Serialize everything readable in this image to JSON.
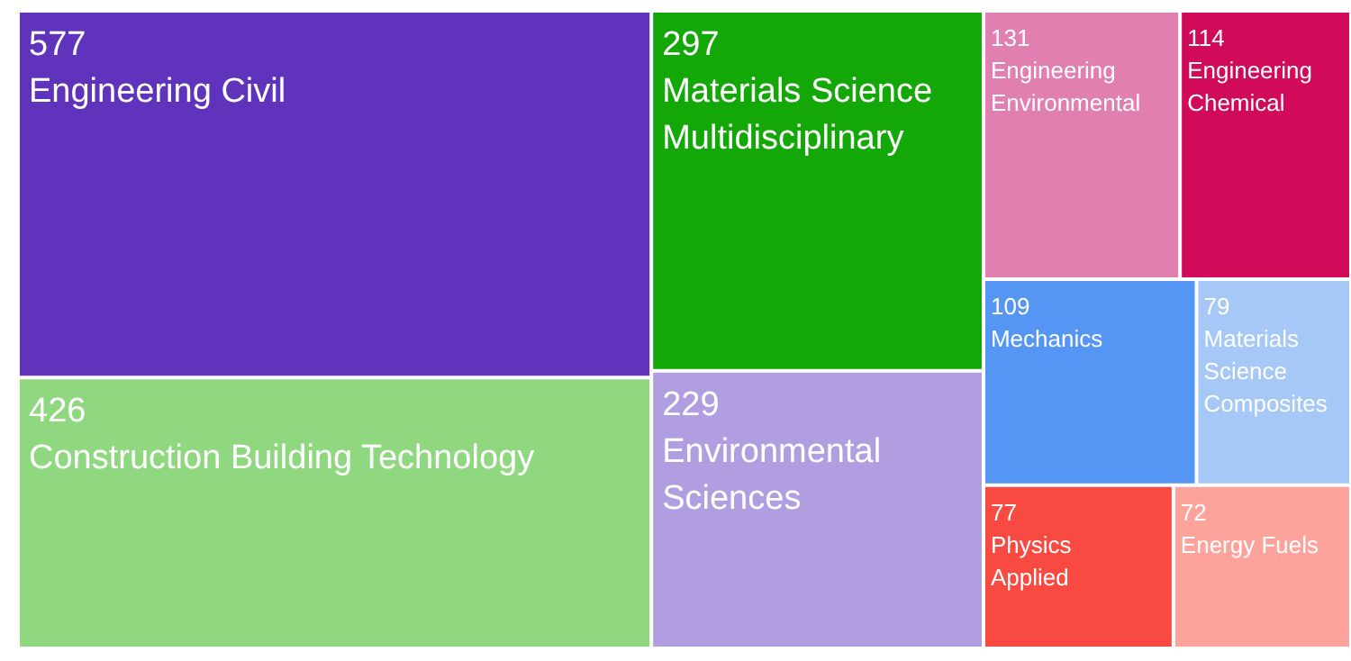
{
  "chart_data": {
    "type": "other",
    "categories": [
      "Engineering Civil",
      "Construction Building Technology",
      "Materials Science Multidisciplinary",
      "Environmental Sciences",
      "Engineering Environmental",
      "Engineering Chemical",
      "Mechanics",
      "Materials Science Composites",
      "Physics Applied",
      "Energy Fuels"
    ],
    "values": [
      577,
      426,
      297,
      229,
      131,
      114,
      109,
      79,
      77,
      72
    ],
    "colors": [
      "#5f33bb",
      "#8fd880",
      "#13a808",
      "#b09ee0",
      "#e07fb0",
      "#d10a5a",
      "#5596f5",
      "#a6c8f7",
      "#f94a42",
      "#fda39b"
    ],
    "data_labels": true
  }
}
